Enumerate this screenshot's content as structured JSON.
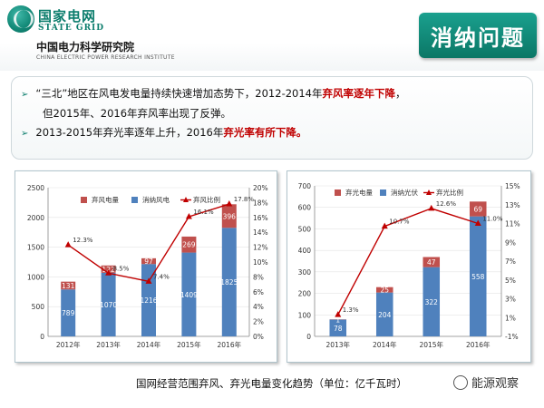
{
  "header": {
    "logo_cn": "国家电网",
    "logo_en": "STATE GRID",
    "institute_cn": "中国电力科学研究院",
    "institute_en": "CHINA ELECTRIC POWER RESEARCH INSTITUTE",
    "title": "消纳问题"
  },
  "bullets": {
    "line1_pre": "“三北”地区在风电发电量持续快速增加态势下，2012-2014年",
    "line1_red": "弃风率逐年下降",
    "line1_post": "，",
    "line2": "但2015年、2016年弃风率出现了反弹。",
    "line3_pre": "2013-2015年弃光率逐年上升，2016年",
    "line3_red": "弃光率有所下降。"
  },
  "caption": "国网经营范围弃风、弃光电量变化趋势（单位：亿千瓦时）",
  "watermark": "能源观察",
  "colors": {
    "brand": "#0b7d6c",
    "curtailed": "#c0504d",
    "consumed": "#4f81bd",
    "ratio_line": "#c00000",
    "highlight": "#c00000"
  },
  "chart_data": [
    {
      "type": "bar",
      "stacked": true,
      "categories": [
        "2012年",
        "2013年",
        "2014年",
        "2015年",
        "2016年"
      ],
      "series": [
        {
          "name": "弃风电量",
          "values": [
            131,
            122,
            97,
            269,
            396
          ]
        },
        {
          "name": "消纳风电",
          "values": [
            789,
            1070,
            1216,
            1409,
            1825
          ]
        }
      ],
      "ratio_series": {
        "name": "弃风比例",
        "values": [
          12.3,
          8.5,
          7.4,
          16.1,
          17.8
        ],
        "labels": [
          "12.3%",
          "8.5%",
          "7.4%",
          "16.1%",
          "17.8%"
        ]
      },
      "ylim": [
        0,
        2500
      ],
      "y_ticks": [
        "0",
        "500",
        "1000",
        "1500",
        "2000",
        "2500"
      ],
      "y2lim": [
        0,
        20
      ],
      "y2_ticks": [
        "0%",
        "2%",
        "4%",
        "6%",
        "8%",
        "10%",
        "12%",
        "14%",
        "16%",
        "18%",
        "20%"
      ],
      "legend": "top"
    },
    {
      "type": "bar",
      "stacked": true,
      "categories": [
        "2013年",
        "2014年",
        "2015年",
        "2016年"
      ],
      "series": [
        {
          "name": "弃光电量",
          "values": [
            1,
            25,
            47,
            69
          ]
        },
        {
          "name": "消纳光伏",
          "values": [
            78,
            204,
            322,
            558
          ]
        }
      ],
      "ratio_series": {
        "name": "弃光比例",
        "values": [
          1.3,
          10.7,
          12.6,
          11.0
        ],
        "labels": [
          "1.3%",
          "10.7%",
          "12.6%",
          "11.0%"
        ]
      },
      "ylim": [
        0,
        700
      ],
      "y_ticks": [
        "0",
        "100",
        "200",
        "300",
        "400",
        "500",
        "600",
        "700"
      ],
      "y2lim": [
        -1,
        15
      ],
      "y2_ticks": [
        "-1%",
        "1%",
        "3%",
        "5%",
        "7%",
        "9%",
        "11%",
        "13%",
        "15%"
      ],
      "legend": "top"
    }
  ]
}
